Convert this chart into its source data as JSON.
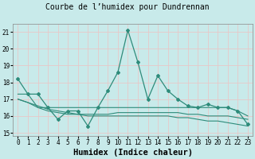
{
  "title": "Courbe de l’humidex pour Dundrennan",
  "xlabel": "Humidex (Indice chaleur)",
  "x": [
    0,
    1,
    2,
    3,
    4,
    5,
    6,
    7,
    8,
    9,
    10,
    11,
    12,
    13,
    14,
    15,
    16,
    17,
    18,
    19,
    20,
    21,
    22,
    23
  ],
  "lines": [
    {
      "y": [
        18.2,
        17.3,
        17.3,
        16.5,
        15.8,
        16.3,
        16.3,
        15.4,
        16.5,
        17.5,
        18.6,
        21.1,
        19.2,
        17.0,
        18.4,
        17.5,
        17.0,
        16.6,
        16.5,
        16.7,
        16.5,
        16.5,
        16.3,
        15.5
      ],
      "color": "#2e8b7a",
      "linewidth": 0.9,
      "marker": "D",
      "markersize": 2.0
    },
    {
      "y": [
        17.3,
        17.3,
        16.5,
        16.5,
        16.5,
        16.5,
        16.5,
        16.5,
        16.5,
        16.5,
        16.5,
        16.5,
        16.5,
        16.5,
        16.5,
        16.5,
        16.5,
        16.5,
        16.5,
        16.5,
        16.5,
        16.5,
        16.3,
        16.0
      ],
      "color": "#2e8b7a",
      "linewidth": 0.8,
      "marker": null,
      "markersize": 0
    },
    {
      "y": [
        17.0,
        16.8,
        16.5,
        16.3,
        16.2,
        16.1,
        16.1,
        16.1,
        16.1,
        16.1,
        16.2,
        16.2,
        16.2,
        16.2,
        16.2,
        16.2,
        16.2,
        16.1,
        16.1,
        16.0,
        16.0,
        16.0,
        15.9,
        15.8
      ],
      "color": "#2e8b7a",
      "linewidth": 0.8,
      "marker": null,
      "markersize": 0
    },
    {
      "y": [
        17.0,
        16.8,
        16.6,
        16.4,
        16.3,
        16.2,
        16.1,
        16.0,
        16.0,
        16.0,
        16.0,
        16.0,
        16.0,
        16.0,
        16.0,
        16.0,
        15.9,
        15.9,
        15.8,
        15.7,
        15.7,
        15.6,
        15.5,
        15.4
      ],
      "color": "#2e8b7a",
      "linewidth": 0.8,
      "marker": null,
      "markersize": 0
    }
  ],
  "ylim": [
    14.8,
    21.5
  ],
  "xlim": [
    -0.5,
    23.5
  ],
  "yticks": [
    15,
    16,
    17,
    18,
    19,
    20,
    21
  ],
  "xticks": [
    0,
    1,
    2,
    3,
    4,
    5,
    6,
    7,
    8,
    9,
    10,
    11,
    12,
    13,
    14,
    15,
    16,
    17,
    18,
    19,
    20,
    21,
    22,
    23
  ],
  "bg_color": "#c8eaea",
  "grid_color": "#e8c8c8",
  "text_color": "#000000",
  "tick_fontsize": 5.5,
  "label_fontsize": 7.5,
  "title_fontsize": 7
}
